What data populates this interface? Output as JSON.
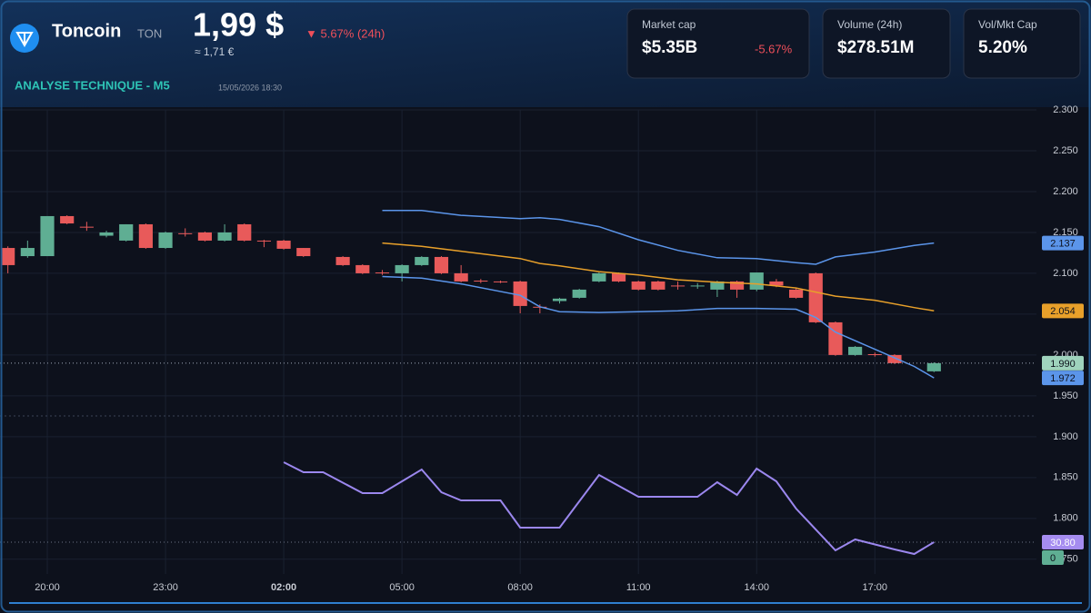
{
  "header": {
    "name": "Toncoin",
    "ticker": "TON",
    "price": "1,99 $",
    "price_eur": "≈ 1,71 €",
    "change": "▼ 5.67% (24h)",
    "subtitle": "ANALYSE TECHNIQUE - M5",
    "timestamp": "15/05/2026 18:30",
    "cards": [
      {
        "label": "Market cap",
        "value": "$5.35B",
        "change": "-5.67%"
      },
      {
        "label": "Volume (24h)",
        "value": "$278.51M"
      },
      {
        "label": "Vol/Mkt Cap",
        "value": "5.20%"
      }
    ]
  },
  "chart_data": [
    {
      "type": "candlestick",
      "up_color": "#5fae93",
      "down_color": "#e85a5a",
      "x": [
        -1,
        -0.5,
        0,
        0.5,
        1,
        1.5,
        2,
        2.5,
        3,
        3.5,
        4,
        4.5,
        5,
        5.5,
        6,
        6.5,
        7.5,
        8,
        8.5,
        9,
        9.5,
        10,
        10.5,
        11,
        11.5,
        12,
        12.5,
        13,
        13.5,
        14,
        14.5,
        15,
        15.5,
        16,
        16.5,
        17,
        17.5,
        18,
        18.5,
        19,
        19.5,
        20,
        20.5,
        21,
        21.5,
        22.5
      ],
      "open": [
        2.131,
        2.121,
        2.121,
        2.17,
        2.157,
        2.146,
        2.14,
        2.16,
        2.131,
        2.149,
        2.15,
        2.14,
        2.16,
        2.14,
        2.14,
        2.131,
        2.12,
        2.11,
        2.101,
        2.1,
        2.11,
        2.12,
        2.1,
        2.091,
        2.09,
        2.09,
        2.059,
        2.066,
        2.07,
        2.09,
        2.1,
        2.09,
        2.09,
        2.085,
        2.084,
        2.08,
        2.09,
        2.08,
        2.09,
        2.08,
        2.1,
        2.04,
        2.0,
        2.001,
        2.0,
        1.98
      ],
      "high": [
        2.133,
        2.14,
        2.17,
        2.171,
        2.163,
        2.152,
        2.16,
        2.161,
        2.151,
        2.155,
        2.151,
        2.16,
        2.161,
        2.141,
        2.141,
        2.131,
        2.121,
        2.111,
        2.104,
        2.111,
        2.121,
        2.121,
        2.11,
        2.093,
        2.091,
        2.091,
        2.062,
        2.07,
        2.081,
        2.101,
        2.101,
        2.091,
        2.091,
        2.09,
        2.088,
        2.091,
        2.091,
        2.101,
        2.093,
        2.082,
        2.101,
        2.041,
        2.011,
        2.003,
        2.001,
        1.991
      ],
      "low": [
        2.1,
        2.119,
        2.121,
        2.16,
        2.152,
        2.144,
        2.139,
        2.13,
        2.13,
        2.145,
        2.139,
        2.139,
        2.139,
        2.132,
        2.129,
        2.12,
        2.109,
        2.099,
        2.098,
        2.09,
        2.109,
        2.099,
        2.089,
        2.088,
        2.088,
        2.051,
        2.051,
        2.063,
        2.069,
        2.089,
        2.089,
        2.079,
        2.079,
        2.08,
        2.081,
        2.071,
        2.07,
        2.078,
        2.083,
        2.069,
        2.039,
        1.999,
        1.999,
        1.998,
        1.989,
        1.979
      ],
      "close": [
        2.11,
        2.131,
        2.17,
        2.161,
        2.156,
        2.15,
        2.16,
        2.131,
        2.15,
        2.148,
        2.14,
        2.15,
        2.14,
        2.139,
        2.13,
        2.121,
        2.11,
        2.1,
        2.1,
        2.11,
        2.12,
        2.1,
        2.09,
        2.09,
        2.089,
        2.06,
        2.058,
        2.069,
        2.08,
        2.1,
        2.09,
        2.08,
        2.08,
        2.084,
        2.085,
        2.09,
        2.08,
        2.101,
        2.085,
        2.07,
        2.04,
        2.0,
        2.01,
        2.0,
        1.99,
        1.99
      ],
      "overlays": [
        {
          "color": "#5b95ea",
          "x": [
            8.5,
            9.5,
            10.5,
            12,
            12.5,
            13,
            14,
            15,
            16,
            17,
            18,
            19,
            19.5,
            20,
            21,
            22,
            22.5
          ],
          "values": [
            2.177,
            2.177,
            2.171,
            2.167,
            2.168,
            2.166,
            2.157,
            2.141,
            2.128,
            2.119,
            2.118,
            2.113,
            2.111,
            2.12,
            2.126,
            2.134,
            2.137
          ]
        },
        {
          "color": "#e8a02a",
          "x": [
            8.5,
            9.5,
            10.5,
            12,
            12.5,
            13,
            14,
            15,
            16,
            17,
            18,
            19,
            19.5,
            20,
            21,
            22,
            22.5
          ],
          "values": [
            2.137,
            2.133,
            2.127,
            2.118,
            2.112,
            2.109,
            2.102,
            2.098,
            2.092,
            2.089,
            2.087,
            2.082,
            2.077,
            2.072,
            2.067,
            2.058,
            2.054
          ]
        },
        {
          "color": "#5b95ea",
          "x": [
            8.5,
            9.5,
            10.5,
            12,
            12.5,
            13,
            14,
            15,
            16,
            17,
            18,
            19,
            19.5,
            20,
            21,
            22,
            22.5
          ],
          "values": [
            2.096,
            2.094,
            2.087,
            2.073,
            2.059,
            2.053,
            2.052,
            2.053,
            2.054,
            2.057,
            2.057,
            2.056,
            2.046,
            2.028,
            2.007,
            1.986,
            1.972
          ]
        }
      ],
      "last_price": {
        "value": 1.99,
        "label": "1.990",
        "color": "#9fd3bd"
      },
      "xlim": [
        -1.2,
        25.1
      ],
      "xticks": [
        {
          "value": 0,
          "label": "20:00"
        },
        {
          "value": 3,
          "label": "23:00"
        },
        {
          "value": 6,
          "label": "02:00",
          "bold": true
        },
        {
          "value": 9,
          "label": "05:00"
        },
        {
          "value": 12,
          "label": "08:00"
        },
        {
          "value": 15,
          "label": "11:00"
        },
        {
          "value": 18,
          "label": "14:00"
        },
        {
          "value": 21,
          "label": "17:00"
        }
      ],
      "ylim": [
        1.732,
        2.3
      ],
      "yticks": [
        {
          "value": 2.3,
          "label": "2.300"
        },
        {
          "value": 2.25,
          "label": "2.250"
        },
        {
          "value": 2.2,
          "label": "2.200"
        },
        {
          "value": 2.15,
          "label": "2.150"
        },
        {
          "value": 2.1,
          "label": "2.100"
        },
        {
          "value": 2.05,
          "label": "2.050"
        },
        {
          "value": 2.0,
          "label": "2.000"
        },
        {
          "value": 1.95,
          "label": "1.950"
        },
        {
          "value": 1.9,
          "label": "1.900"
        },
        {
          "value": 1.85,
          "label": "1.850"
        },
        {
          "value": 1.8,
          "label": "1.800"
        },
        {
          "value": 1.75,
          "label": "1.750"
        }
      ],
      "grid": true
    },
    {
      "type": "line",
      "color": "#9b87ee",
      "x": [
        6,
        6.5,
        7,
        8,
        8.5,
        9.5,
        10,
        10.5,
        11.5,
        12,
        13,
        14,
        15,
        16.5,
        17,
        17.5,
        18,
        18.5,
        19,
        20,
        20.5,
        21.5,
        22,
        22.5
      ],
      "values": [
        190.2,
        170.3,
        170.3,
        128.6,
        128.6,
        175.7,
        130.4,
        114.1,
        114.1,
        59.8,
        59.8,
        164.9,
        121.4,
        121.4,
        150.4,
        125.0,
        177.5,
        152.2,
        97.8,
        14.5,
        36.2,
        16.3,
        7.2,
        30.8
      ],
      "last_value": {
        "value": 30.8,
        "label": "30.80",
        "color": "#a58cf0"
      },
      "xlim": [
        -1.2,
        25.1
      ],
      "ylim": [
        -32.6,
        282.6
      ],
      "yticks": [
        0
      ],
      "tick_color": "#5fae93"
    }
  ]
}
